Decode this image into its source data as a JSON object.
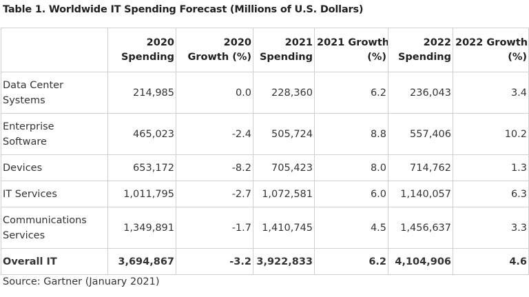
{
  "title": "Table 1. Worldwide IT Spending Forecast (Millions of U.S. Dollars)",
  "source": "Source: Gartner (January 2021)",
  "chart_data": {
    "type": "table",
    "title": "Table 1. Worldwide IT Spending Forecast (Millions of U.S. Dollars)",
    "columns": [
      "",
      "2020 Spending",
      "2020 Growth (%)",
      "2021 Spending",
      "2021 Growth (%)",
      "2022 Spending",
      "2022 Growth (%)"
    ],
    "header_lines": [
      [
        "",
        ""
      ],
      [
        "2020",
        "Spending"
      ],
      [
        "2020",
        "Growth (%)"
      ],
      [
        "2021",
        "Spending"
      ],
      [
        "2021 Growth",
        "(%)"
      ],
      [
        "2022",
        "Spending"
      ],
      [
        "2022 Growth",
        "(%)"
      ]
    ],
    "rows": [
      {
        "category_lines": [
          "Data Center",
          "Systems"
        ],
        "values": [
          "214,985",
          "0.0",
          "228,360",
          "6.2",
          "236,043",
          "3.4"
        ]
      },
      {
        "category_lines": [
          "Enterprise",
          "Software"
        ],
        "values": [
          "465,023",
          "-2.4",
          "505,724",
          "8.8",
          "557,406",
          "10.2"
        ]
      },
      {
        "category_lines": [
          "Devices"
        ],
        "values": [
          "653,172",
          "-8.2",
          "705,423",
          "8.0",
          "714,762",
          "1.3"
        ]
      },
      {
        "category_lines": [
          "IT Services"
        ],
        "values": [
          "1,011,795",
          "-2.7",
          "1,072,581",
          "6.0",
          "1,140,057",
          "6.3"
        ]
      },
      {
        "category_lines": [
          "Communications",
          "Services"
        ],
        "values": [
          "1,349,891",
          "-1.7",
          "1,410,745",
          "4.5",
          "1,456,637",
          "3.3"
        ]
      }
    ],
    "total": {
      "category": "Overall IT",
      "values": [
        "3,694,867",
        "-3.2",
        "3,922,833",
        "6.2",
        "4,104,906",
        "4.6"
      ]
    }
  }
}
